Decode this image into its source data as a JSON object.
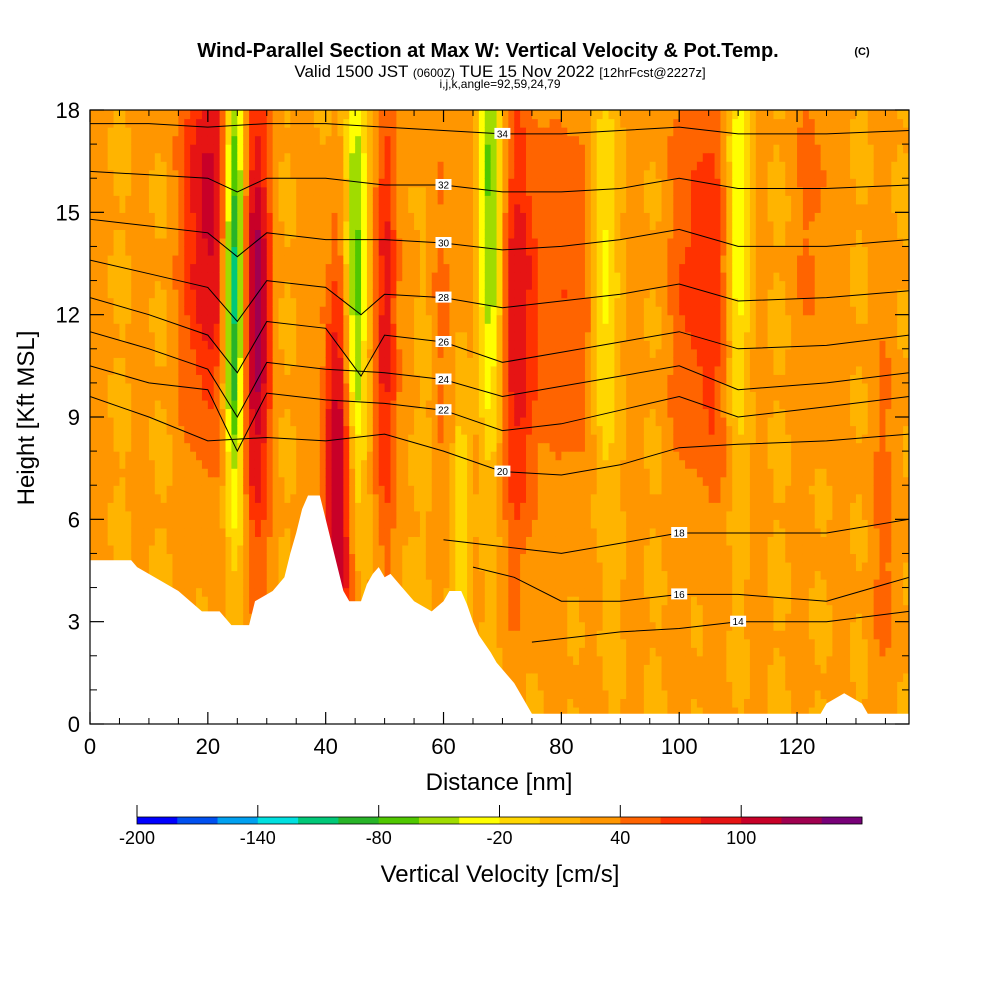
{
  "header": {
    "title": "Wind-Parallel Section at Max W: Vertical Velocity & Pot.Temp.",
    "title_mark": "(C)",
    "sub_prefix": "Valid 1500 JST",
    "sub_zulu": "(0600Z)",
    "sub_date": "TUE 15 Nov 2022",
    "sub_fcst": "[12hrFcst@2227z]",
    "sub2": "i,j,k,angle=92,59,24,79"
  },
  "chart_data": {
    "type": "heatmap",
    "xlabel": "Distance [nm]",
    "ylabel": "Height [Kft MSL]",
    "xlim": [
      0,
      139
    ],
    "ylim": [
      0,
      18
    ],
    "x_ticks": [
      "0",
      "20",
      "40",
      "60",
      "80",
      "100",
      "120"
    ],
    "x_tick_values": [
      0,
      20,
      40,
      60,
      80,
      100,
      120
    ],
    "y_ticks": [
      "0",
      "3",
      "6",
      "9",
      "12",
      "15",
      "18"
    ],
    "y_tick_values": [
      0,
      3,
      6,
      9,
      12,
      15,
      18
    ],
    "colorbar": {
      "label": "Vertical Velocity [cm/s]",
      "tick_labels": [
        "-200",
        "-140",
        "-80",
        "-20",
        "40",
        "100"
      ],
      "colors": [
        "#0000ff",
        "#0050f0",
        "#00a0f0",
        "#00e0e0",
        "#00c878",
        "#28b428",
        "#50c800",
        "#a0dc00",
        "#ffff00",
        "#ffd700",
        "#ffb400",
        "#ff9600",
        "#ff6400",
        "#ff3200",
        "#e61414",
        "#c80028",
        "#a00050",
        "#780078"
      ]
    },
    "terrain": [
      [
        0,
        4.8
      ],
      [
        7,
        4.8
      ],
      [
        8,
        4.6
      ],
      [
        12,
        4.2
      ],
      [
        15,
        3.9
      ],
      [
        17,
        3.6
      ],
      [
        19,
        3.3
      ],
      [
        22,
        3.3
      ],
      [
        24,
        2.9
      ],
      [
        27,
        2.9
      ],
      [
        28,
        3.6
      ],
      [
        31,
        3.9
      ],
      [
        33,
        4.3
      ],
      [
        34,
        5.0
      ],
      [
        35,
        5.6
      ],
      [
        36,
        6.3
      ],
      [
        37,
        6.7
      ],
      [
        39,
        6.7
      ],
      [
        40,
        6.0
      ],
      [
        41,
        5.3
      ],
      [
        42,
        4.6
      ],
      [
        43,
        3.9
      ],
      [
        44,
        3.6
      ],
      [
        46,
        3.6
      ],
      [
        47,
        4.1
      ],
      [
        48,
        4.4
      ],
      [
        49,
        4.6
      ],
      [
        50,
        4.3
      ],
      [
        51,
        4.4
      ],
      [
        53,
        4.0
      ],
      [
        55,
        3.6
      ],
      [
        58,
        3.3
      ],
      [
        60,
        3.6
      ],
      [
        61,
        3.9
      ],
      [
        63,
        3.9
      ],
      [
        64,
        3.5
      ],
      [
        65,
        3.0
      ],
      [
        66,
        2.6
      ],
      [
        68,
        2.1
      ],
      [
        69,
        1.8
      ],
      [
        71,
        1.4
      ],
      [
        72,
        1.2
      ],
      [
        73,
        0.9
      ],
      [
        74,
        0.6
      ],
      [
        75,
        0.3
      ],
      [
        77,
        0.3
      ],
      [
        124,
        0.3
      ],
      [
        125,
        0.6
      ],
      [
        128,
        0.9
      ],
      [
        131,
        0.6
      ],
      [
        132,
        0.3
      ],
      [
        139,
        0.3
      ]
    ],
    "updraft_bands": [
      {
        "x": 20,
        "h": 15,
        "w": 4,
        "amp": 90
      },
      {
        "x": 28,
        "h": 12,
        "w": 2.5,
        "amp": 110
      },
      {
        "x": 42,
        "h": 7,
        "w": 2.5,
        "amp": 100
      },
      {
        "x": 50,
        "h": 12,
        "w": 2,
        "amp": 60
      },
      {
        "x": 59,
        "h": 12,
        "w": 5,
        "amp": 30
      },
      {
        "x": 73,
        "h": 12,
        "w": 3.5,
        "amp": 75
      },
      {
        "x": 82,
        "h": 13,
        "w": 4,
        "amp": 40
      },
      {
        "x": 104,
        "h": 13,
        "w": 5,
        "amp": 55
      },
      {
        "x": 123,
        "h": 16,
        "w": 3,
        "amp": 25
      },
      {
        "x": 135,
        "h": 6,
        "w": 3,
        "amp": 20
      }
    ],
    "downdraft_bands": [
      {
        "x": 24.5,
        "h": 13,
        "w": 1.8,
        "amp": -165
      },
      {
        "x": 45,
        "h": 13,
        "w": 1.8,
        "amp": -100
      },
      {
        "x": 57,
        "h": 11,
        "w": 1.8,
        "amp": -40
      },
      {
        "x": 63,
        "h": 6,
        "w": 1.5,
        "amp": -50
      },
      {
        "x": 68,
        "h": 15,
        "w": 2.2,
        "amp": -90
      },
      {
        "x": 87,
        "h": 13,
        "w": 2.2,
        "amp": -55
      },
      {
        "x": 110,
        "h": 15,
        "w": 2.2,
        "amp": -60
      }
    ],
    "isentropes": [
      {
        "label": "14",
        "points": [
          [
            75,
            2.4
          ],
          [
            90,
            2.7
          ],
          [
            100,
            2.8
          ],
          [
            110,
            3.0
          ],
          [
            125,
            3.0
          ],
          [
            139,
            3.3
          ]
        ]
      },
      {
        "label": "16",
        "points": [
          [
            65,
            4.6
          ],
          [
            72,
            4.3
          ],
          [
            80,
            3.6
          ],
          [
            90,
            3.6
          ],
          [
            100,
            3.8
          ],
          [
            110,
            3.8
          ],
          [
            125,
            3.6
          ],
          [
            139,
            4.3
          ]
        ]
      },
      {
        "label": "18",
        "points": [
          [
            60,
            5.4
          ],
          [
            70,
            5.2
          ],
          [
            80,
            5.0
          ],
          [
            90,
            5.3
          ],
          [
            100,
            5.6
          ],
          [
            110,
            5.6
          ],
          [
            125,
            5.6
          ],
          [
            139,
            6.0
          ]
        ]
      },
      {
        "label": "20",
        "points": [
          [
            0,
            9.6
          ],
          [
            10,
            9.0
          ],
          [
            20,
            8.3
          ],
          [
            30,
            8.4
          ],
          [
            40,
            8.3
          ],
          [
            50,
            8.5
          ],
          [
            60,
            8.0
          ],
          [
            70,
            7.4
          ],
          [
            80,
            7.3
          ],
          [
            90,
            7.6
          ],
          [
            100,
            8.1
          ],
          [
            110,
            8.2
          ],
          [
            125,
            8.3
          ],
          [
            139,
            8.5
          ]
        ]
      },
      {
        "label": "22",
        "points": [
          [
            0,
            10.5
          ],
          [
            10,
            10.0
          ],
          [
            20,
            9.8
          ],
          [
            25,
            8.0
          ],
          [
            30,
            9.7
          ],
          [
            40,
            9.5
          ],
          [
            50,
            9.4
          ],
          [
            60,
            9.2
          ],
          [
            70,
            8.6
          ],
          [
            80,
            8.8
          ],
          [
            90,
            9.2
          ],
          [
            100,
            9.6
          ],
          [
            110,
            9.0
          ],
          [
            125,
            9.3
          ],
          [
            139,
            9.6
          ]
        ]
      },
      {
        "label": "24",
        "points": [
          [
            0,
            11.5
          ],
          [
            10,
            11.0
          ],
          [
            20,
            10.4
          ],
          [
            25,
            9.0
          ],
          [
            30,
            10.6
          ],
          [
            40,
            10.4
          ],
          [
            50,
            10.3
          ],
          [
            60,
            10.1
          ],
          [
            70,
            9.6
          ],
          [
            80,
            9.9
          ],
          [
            90,
            10.2
          ],
          [
            100,
            10.5
          ],
          [
            110,
            9.8
          ],
          [
            125,
            10.0
          ],
          [
            139,
            10.3
          ]
        ]
      },
      {
        "label": "26",
        "points": [
          [
            0,
            12.5
          ],
          [
            10,
            12.0
          ],
          [
            20,
            11.4
          ],
          [
            25,
            10.3
          ],
          [
            30,
            11.8
          ],
          [
            40,
            11.6
          ],
          [
            46,
            10.2
          ],
          [
            50,
            11.4
          ],
          [
            60,
            11.2
          ],
          [
            70,
            10.6
          ],
          [
            80,
            10.9
          ],
          [
            90,
            11.2
          ],
          [
            100,
            11.5
          ],
          [
            110,
            11.0
          ],
          [
            125,
            11.1
          ],
          [
            139,
            11.4
          ]
        ]
      },
      {
        "label": "28",
        "points": [
          [
            0,
            13.6
          ],
          [
            10,
            13.2
          ],
          [
            20,
            12.8
          ],
          [
            25,
            11.8
          ],
          [
            30,
            13.0
          ],
          [
            40,
            12.8
          ],
          [
            46,
            12.0
          ],
          [
            50,
            12.6
          ],
          [
            60,
            12.5
          ],
          [
            70,
            12.2
          ],
          [
            80,
            12.4
          ],
          [
            90,
            12.6
          ],
          [
            100,
            12.9
          ],
          [
            110,
            12.4
          ],
          [
            125,
            12.5
          ],
          [
            139,
            12.7
          ]
        ]
      },
      {
        "label": "30",
        "points": [
          [
            0,
            14.8
          ],
          [
            10,
            14.6
          ],
          [
            20,
            14.4
          ],
          [
            25,
            13.7
          ],
          [
            30,
            14.4
          ],
          [
            40,
            14.2
          ],
          [
            50,
            14.2
          ],
          [
            60,
            14.1
          ],
          [
            70,
            13.9
          ],
          [
            80,
            14.0
          ],
          [
            90,
            14.2
          ],
          [
            100,
            14.5
          ],
          [
            110,
            14.0
          ],
          [
            125,
            14.0
          ],
          [
            139,
            14.2
          ]
        ]
      },
      {
        "label": "32",
        "points": [
          [
            0,
            16.2
          ],
          [
            10,
            16.1
          ],
          [
            20,
            16.0
          ],
          [
            25,
            15.6
          ],
          [
            30,
            16.0
          ],
          [
            40,
            16.0
          ],
          [
            50,
            15.8
          ],
          [
            60,
            15.8
          ],
          [
            70,
            15.6
          ],
          [
            80,
            15.6
          ],
          [
            90,
            15.7
          ],
          [
            100,
            16.0
          ],
          [
            110,
            15.7
          ],
          [
            125,
            15.7
          ],
          [
            139,
            15.8
          ]
        ]
      },
      {
        "label": "34",
        "points": [
          [
            0,
            17.6
          ],
          [
            10,
            17.6
          ],
          [
            20,
            17.5
          ],
          [
            30,
            17.6
          ],
          [
            40,
            17.6
          ],
          [
            50,
            17.5
          ],
          [
            60,
            17.4
          ],
          [
            70,
            17.3
          ],
          [
            80,
            17.3
          ],
          [
            90,
            17.4
          ],
          [
            100,
            17.5
          ],
          [
            110,
            17.3
          ],
          [
            125,
            17.3
          ],
          [
            139,
            17.4
          ]
        ]
      }
    ]
  }
}
